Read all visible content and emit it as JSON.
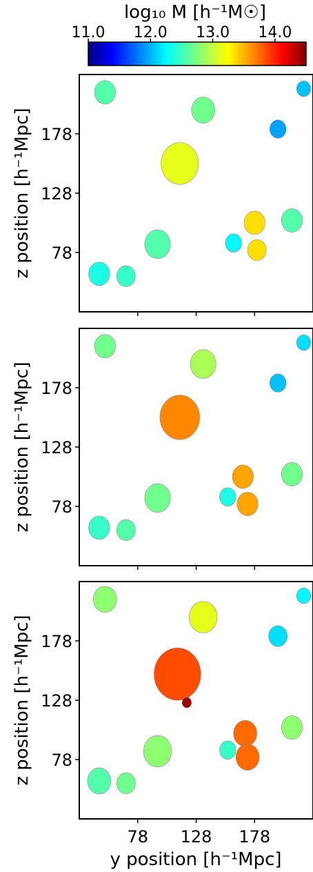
{
  "colorbar": {
    "label": "log₁₀ M [h⁻¹M☉]",
    "ticks": [
      "11.0",
      "12.0",
      "13.0",
      "14.0"
    ],
    "tick_values": [
      11.0,
      12.0,
      13.0,
      14.0
    ],
    "range": [
      11.0,
      14.5
    ],
    "colormap": "jet"
  },
  "axes": {
    "ylabel": "z position [h⁻¹Mpc]",
    "xlabel": "y position [h⁻¹Mpc]",
    "yticks": [
      "178",
      "128",
      "78"
    ],
    "ytick_values": [
      178,
      128,
      78
    ],
    "xticks": [
      "78",
      "128",
      "178"
    ],
    "xtick_values": [
      78,
      128,
      178
    ],
    "xlim": [
      28,
      228
    ],
    "ylim": [
      28,
      228
    ]
  },
  "chart_data": {
    "type": "heatmap",
    "description_units": "halo regions colored by log10 mass",
    "panels": [
      {
        "panel": 1,
        "halos": [
          {
            "y": 114,
            "z": 153,
            "r": 16,
            "logM": 13.1
          },
          {
            "y": 134,
            "z": 198,
            "r": 10,
            "logM": 12.7
          },
          {
            "y": 178,
            "z": 103,
            "r": 9,
            "logM": 13.3
          },
          {
            "y": 180,
            "z": 80,
            "r": 8,
            "logM": 13.3
          },
          {
            "y": 95,
            "z": 85,
            "r": 11,
            "logM": 12.6
          },
          {
            "y": 50,
            "z": 213,
            "r": 9,
            "logM": 12.6
          },
          {
            "y": 45,
            "z": 60,
            "r": 9,
            "logM": 12.4
          },
          {
            "y": 68,
            "z": 58,
            "r": 8,
            "logM": 12.5
          },
          {
            "y": 210,
            "z": 105,
            "r": 9,
            "logM": 12.6
          },
          {
            "y": 160,
            "z": 86,
            "r": 7,
            "logM": 12.3
          },
          {
            "y": 198,
            "z": 182,
            "r": 7,
            "logM": 12.0
          },
          {
            "y": 220,
            "z": 216,
            "r": 6,
            "logM": 12.1
          }
        ]
      },
      {
        "panel": 2,
        "halos": [
          {
            "y": 114,
            "z": 153,
            "r": 17,
            "logM": 13.6
          },
          {
            "y": 134,
            "z": 198,
            "r": 11,
            "logM": 12.9
          },
          {
            "y": 168,
            "z": 103,
            "r": 9,
            "logM": 13.5
          },
          {
            "y": 172,
            "z": 80,
            "r": 9,
            "logM": 13.5
          },
          {
            "y": 95,
            "z": 85,
            "r": 11,
            "logM": 12.7
          },
          {
            "y": 50,
            "z": 213,
            "r": 9,
            "logM": 12.7
          },
          {
            "y": 45,
            "z": 60,
            "r": 9,
            "logM": 12.5
          },
          {
            "y": 68,
            "z": 58,
            "r": 8,
            "logM": 12.6
          },
          {
            "y": 210,
            "z": 105,
            "r": 9,
            "logM": 12.7
          },
          {
            "y": 155,
            "z": 86,
            "r": 7,
            "logM": 12.4
          },
          {
            "y": 198,
            "z": 182,
            "r": 7,
            "logM": 12.1
          },
          {
            "y": 220,
            "z": 216,
            "r": 6,
            "logM": 12.2
          }
        ]
      },
      {
        "panel": 3,
        "halos": [
          {
            "y": 112,
            "z": 150,
            "r": 20,
            "logM": 13.8
          },
          {
            "y": 134,
            "z": 198,
            "r": 12,
            "logM": 13.1
          },
          {
            "y": 170,
            "z": 100,
            "r": 10,
            "logM": 13.7
          },
          {
            "y": 172,
            "z": 80,
            "r": 10,
            "logM": 13.7
          },
          {
            "y": 120,
            "z": 126,
            "r": 4,
            "logM": 14.4
          },
          {
            "y": 95,
            "z": 85,
            "r": 12,
            "logM": 12.8
          },
          {
            "y": 50,
            "z": 213,
            "r": 10,
            "logM": 12.8
          },
          {
            "y": 45,
            "z": 60,
            "r": 10,
            "logM": 12.6
          },
          {
            "y": 68,
            "z": 58,
            "r": 8,
            "logM": 12.7
          },
          {
            "y": 210,
            "z": 105,
            "r": 9,
            "logM": 12.8
          },
          {
            "y": 155,
            "z": 86,
            "r": 7,
            "logM": 12.5
          },
          {
            "y": 198,
            "z": 182,
            "r": 8,
            "logM": 12.2
          },
          {
            "y": 220,
            "z": 216,
            "r": 6,
            "logM": 12.3
          }
        ]
      }
    ],
    "xlabel": "y position [h⁻¹Mpc]",
    "ylabel": "z position [h⁻¹Mpc]",
    "xlim": [
      28,
      228
    ],
    "ylim": [
      28,
      228
    ],
    "colorbar_range": [
      11.0,
      14.5
    ]
  }
}
